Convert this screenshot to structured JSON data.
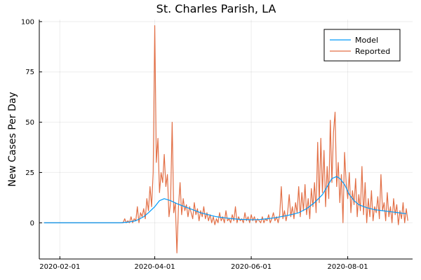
{
  "chart_data": {
    "type": "line",
    "title": "St. Charles Parish, LA",
    "xlabel": "",
    "ylabel": "New Cases Per Day",
    "x_axis_type": "date",
    "xlim": [
      "2020-01-19",
      "2020-09-11"
    ],
    "ylim": [
      -18,
      101
    ],
    "x_ticks": [
      "2020-02-01",
      "2020-04-01",
      "2020-06-01",
      "2020-08-01"
    ],
    "y_ticks": [
      0,
      25,
      50,
      75,
      100
    ],
    "grid": true,
    "legend_position": "top-right",
    "series": [
      {
        "name": "Model",
        "color": "#009AFA",
        "points": [
          [
            "2020-01-22",
            0
          ],
          [
            "2020-03-10",
            0
          ],
          [
            "2020-03-15",
            0.3
          ],
          [
            "2020-03-20",
            1
          ],
          [
            "2020-03-25",
            3
          ],
          [
            "2020-03-28",
            5
          ],
          [
            "2020-04-01",
            8
          ],
          [
            "2020-04-04",
            11
          ],
          [
            "2020-04-07",
            12
          ],
          [
            "2020-04-11",
            11
          ],
          [
            "2020-04-15",
            9.5
          ],
          [
            "2020-04-20",
            8
          ],
          [
            "2020-04-25",
            6.5
          ],
          [
            "2020-04-30",
            5
          ],
          [
            "2020-05-05",
            4
          ],
          [
            "2020-05-10",
            3
          ],
          [
            "2020-05-15",
            2.5
          ],
          [
            "2020-05-20",
            2
          ],
          [
            "2020-05-25",
            1.7
          ],
          [
            "2020-06-01",
            1.5
          ],
          [
            "2020-06-06",
            1.6
          ],
          [
            "2020-06-11",
            2
          ],
          [
            "2020-06-16",
            2.5
          ],
          [
            "2020-06-21",
            3.2
          ],
          [
            "2020-06-26",
            4
          ],
          [
            "2020-07-01",
            5
          ],
          [
            "2020-07-06",
            7
          ],
          [
            "2020-07-11",
            10
          ],
          [
            "2020-07-16",
            14
          ],
          [
            "2020-07-19",
            18
          ],
          [
            "2020-07-22",
            22
          ],
          [
            "2020-07-25",
            23
          ],
          [
            "2020-07-27",
            22
          ],
          [
            "2020-07-30",
            19
          ],
          [
            "2020-08-02",
            14
          ],
          [
            "2020-08-05",
            11
          ],
          [
            "2020-08-08",
            9
          ],
          [
            "2020-08-13",
            7.5
          ],
          [
            "2020-08-18",
            6.5
          ],
          [
            "2020-08-23",
            6
          ],
          [
            "2020-08-28",
            5.5
          ],
          [
            "2020-09-02",
            5
          ],
          [
            "2020-09-07",
            4.5
          ]
        ]
      },
      {
        "name": "Reported",
        "color": "#E26F46",
        "points": [
          [
            "2020-01-22",
            0
          ],
          [
            "2020-03-12",
            0
          ],
          [
            "2020-03-13",
            2
          ],
          [
            "2020-03-14",
            0
          ],
          [
            "2020-03-15",
            1
          ],
          [
            "2020-03-16",
            0
          ],
          [
            "2020-03-17",
            3
          ],
          [
            "2020-03-18",
            0
          ],
          [
            "2020-03-19",
            2
          ],
          [
            "2020-03-20",
            1
          ],
          [
            "2020-03-21",
            8
          ],
          [
            "2020-03-22",
            0
          ],
          [
            "2020-03-23",
            5
          ],
          [
            "2020-03-24",
            3
          ],
          [
            "2020-03-25",
            7
          ],
          [
            "2020-03-26",
            2
          ],
          [
            "2020-03-27",
            12
          ],
          [
            "2020-03-28",
            6
          ],
          [
            "2020-03-29",
            18
          ],
          [
            "2020-03-30",
            8
          ],
          [
            "2020-03-31",
            25
          ],
          [
            "2020-04-01",
            98
          ],
          [
            "2020-04-02",
            30
          ],
          [
            "2020-04-03",
            42
          ],
          [
            "2020-04-04",
            15
          ],
          [
            "2020-04-05",
            25
          ],
          [
            "2020-04-06",
            20
          ],
          [
            "2020-04-07",
            34
          ],
          [
            "2020-04-08",
            18
          ],
          [
            "2020-04-09",
            24
          ],
          [
            "2020-04-10",
            3
          ],
          [
            "2020-04-11",
            10
          ],
          [
            "2020-04-12",
            50
          ],
          [
            "2020-04-13",
            5
          ],
          [
            "2020-04-14",
            10
          ],
          [
            "2020-04-15",
            -15
          ],
          [
            "2020-04-16",
            8
          ],
          [
            "2020-04-17",
            20
          ],
          [
            "2020-04-18",
            4
          ],
          [
            "2020-04-19",
            12
          ],
          [
            "2020-04-20",
            6
          ],
          [
            "2020-04-21",
            9
          ],
          [
            "2020-04-22",
            3
          ],
          [
            "2020-04-23",
            8
          ],
          [
            "2020-04-24",
            5
          ],
          [
            "2020-04-25",
            2
          ],
          [
            "2020-04-26",
            10
          ],
          [
            "2020-04-27",
            4
          ],
          [
            "2020-04-28",
            7
          ],
          [
            "2020-04-29",
            1
          ],
          [
            "2020-04-30",
            6
          ],
          [
            "2020-05-01",
            3
          ],
          [
            "2020-05-02",
            8
          ],
          [
            "2020-05-03",
            2
          ],
          [
            "2020-05-04",
            5
          ],
          [
            "2020-05-05",
            1
          ],
          [
            "2020-05-06",
            4
          ],
          [
            "2020-05-07",
            0
          ],
          [
            "2020-05-08",
            3
          ],
          [
            "2020-05-09",
            -1
          ],
          [
            "2020-05-10",
            2
          ],
          [
            "2020-05-11",
            0
          ],
          [
            "2020-05-12",
            5
          ],
          [
            "2020-05-13",
            1
          ],
          [
            "2020-05-14",
            3
          ],
          [
            "2020-05-15",
            0
          ],
          [
            "2020-05-16",
            6
          ],
          [
            "2020-05-17",
            1
          ],
          [
            "2020-05-18",
            2
          ],
          [
            "2020-05-19",
            0
          ],
          [
            "2020-05-20",
            4
          ],
          [
            "2020-05-21",
            1
          ],
          [
            "2020-05-22",
            8
          ],
          [
            "2020-05-23",
            0
          ],
          [
            "2020-05-24",
            3
          ],
          [
            "2020-05-25",
            1
          ],
          [
            "2020-05-26",
            2
          ],
          [
            "2020-05-27",
            0
          ],
          [
            "2020-05-28",
            5
          ],
          [
            "2020-05-29",
            1
          ],
          [
            "2020-05-30",
            3
          ],
          [
            "2020-05-31",
            0
          ],
          [
            "2020-06-01",
            4
          ],
          [
            "2020-06-02",
            1
          ],
          [
            "2020-06-03",
            3
          ],
          [
            "2020-06-04",
            0
          ],
          [
            "2020-06-05",
            2
          ],
          [
            "2020-06-06",
            1
          ],
          [
            "2020-06-07",
            0
          ],
          [
            "2020-06-08",
            3
          ],
          [
            "2020-06-09",
            0
          ],
          [
            "2020-06-10",
            2
          ],
          [
            "2020-06-11",
            1
          ],
          [
            "2020-06-12",
            4
          ],
          [
            "2020-06-13",
            0
          ],
          [
            "2020-06-14",
            2
          ],
          [
            "2020-06-15",
            5
          ],
          [
            "2020-06-16",
            1
          ],
          [
            "2020-06-17",
            3
          ],
          [
            "2020-06-18",
            0
          ],
          [
            "2020-06-19",
            4
          ],
          [
            "2020-06-20",
            18
          ],
          [
            "2020-06-21",
            2
          ],
          [
            "2020-06-22",
            6
          ],
          [
            "2020-06-23",
            1
          ],
          [
            "2020-06-24",
            5
          ],
          [
            "2020-06-25",
            14
          ],
          [
            "2020-06-26",
            3
          ],
          [
            "2020-06-27",
            8
          ],
          [
            "2020-06-28",
            2
          ],
          [
            "2020-06-29",
            10
          ],
          [
            "2020-06-30",
            5
          ],
          [
            "2020-07-01",
            18
          ],
          [
            "2020-07-02",
            3
          ],
          [
            "2020-07-03",
            15
          ],
          [
            "2020-07-04",
            6
          ],
          [
            "2020-07-05",
            19
          ],
          [
            "2020-07-06",
            4
          ],
          [
            "2020-07-07",
            12
          ],
          [
            "2020-07-08",
            2
          ],
          [
            "2020-07-09",
            17
          ],
          [
            "2020-07-10",
            8
          ],
          [
            "2020-07-11",
            20
          ],
          [
            "2020-07-12",
            5
          ],
          [
            "2020-07-13",
            40
          ],
          [
            "2020-07-14",
            10
          ],
          [
            "2020-07-15",
            42
          ],
          [
            "2020-07-16",
            15
          ],
          [
            "2020-07-17",
            36
          ],
          [
            "2020-07-18",
            8
          ],
          [
            "2020-07-19",
            28
          ],
          [
            "2020-07-20",
            12
          ],
          [
            "2020-07-21",
            51
          ],
          [
            "2020-07-22",
            20
          ],
          [
            "2020-07-23",
            45
          ],
          [
            "2020-07-24",
            55
          ],
          [
            "2020-07-25",
            18
          ],
          [
            "2020-07-26",
            30
          ],
          [
            "2020-07-27",
            10
          ],
          [
            "2020-07-28",
            24
          ],
          [
            "2020-07-29",
            0
          ],
          [
            "2020-07-30",
            35
          ],
          [
            "2020-07-31",
            20
          ],
          [
            "2020-08-01",
            12
          ],
          [
            "2020-08-02",
            25
          ],
          [
            "2020-08-03",
            5
          ],
          [
            "2020-08-04",
            16
          ],
          [
            "2020-08-05",
            9
          ],
          [
            "2020-08-06",
            22
          ],
          [
            "2020-08-07",
            3
          ],
          [
            "2020-08-08",
            14
          ],
          [
            "2020-08-09",
            6
          ],
          [
            "2020-08-10",
            28
          ],
          [
            "2020-08-11",
            4
          ],
          [
            "2020-08-12",
            20
          ],
          [
            "2020-08-13",
            0
          ],
          [
            "2020-08-14",
            12
          ],
          [
            "2020-08-15",
            3
          ],
          [
            "2020-08-16",
            16
          ],
          [
            "2020-08-17",
            1
          ],
          [
            "2020-08-18",
            8
          ],
          [
            "2020-08-19",
            5
          ],
          [
            "2020-08-20",
            13
          ],
          [
            "2020-08-21",
            2
          ],
          [
            "2020-08-22",
            24
          ],
          [
            "2020-08-23",
            6
          ],
          [
            "2020-08-24",
            10
          ],
          [
            "2020-08-25",
            1
          ],
          [
            "2020-08-26",
            15
          ],
          [
            "2020-08-27",
            3
          ],
          [
            "2020-08-28",
            8
          ],
          [
            "2020-08-29",
            0
          ],
          [
            "2020-08-30",
            12
          ],
          [
            "2020-08-31",
            4
          ],
          [
            "2020-09-01",
            9
          ],
          [
            "2020-09-02",
            -1
          ],
          [
            "2020-09-03",
            6
          ],
          [
            "2020-09-04",
            2
          ],
          [
            "2020-09-05",
            10
          ],
          [
            "2020-09-06",
            0
          ],
          [
            "2020-09-07",
            7
          ],
          [
            "2020-09-08",
            1
          ]
        ]
      }
    ]
  }
}
